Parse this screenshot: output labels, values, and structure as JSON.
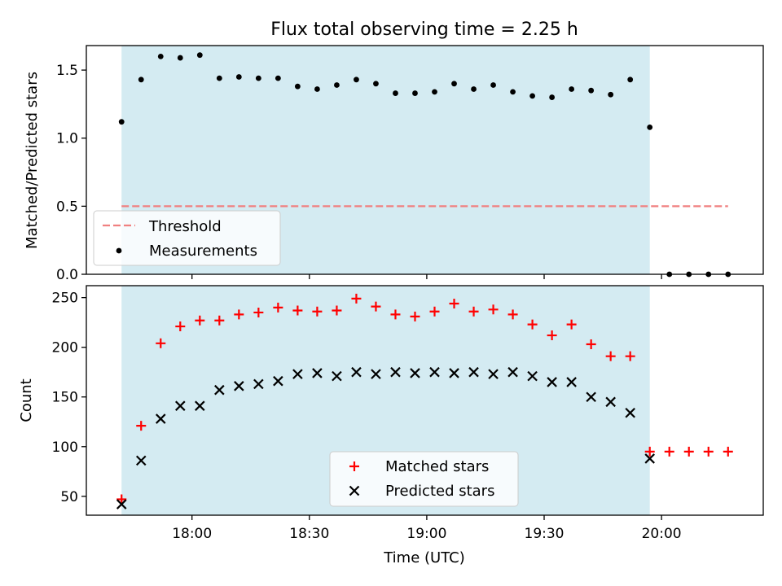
{
  "chart_data": [
    {
      "type": "scatter",
      "title": "Flux total observing time = 2.25 h",
      "xlabel": "",
      "ylabel": "Matched/Predicted stars",
      "ylim": [
        0,
        1.68
      ],
      "yticks": [
        0.0,
        0.5,
        1.0,
        1.5
      ],
      "ytick_labels": [
        "0.0",
        "0.5",
        "1.0",
        "1.5"
      ],
      "shaded_interval": [
        "17:42",
        "19:57"
      ],
      "threshold": {
        "name": "Threshold",
        "value": 0.5,
        "x_range": [
          "17:42",
          "20:17"
        ],
        "color": "#f08080"
      },
      "legend": {
        "position": "lower-left",
        "entries": [
          "Threshold",
          "Measurements"
        ]
      },
      "series": [
        {
          "name": "Measurements",
          "marker": "dot",
          "color": "#000000",
          "x": [
            "17:42",
            "17:47",
            "17:52",
            "17:57",
            "18:02",
            "18:07",
            "18:12",
            "18:17",
            "18:22",
            "18:27",
            "18:32",
            "18:37",
            "18:42",
            "18:47",
            "18:52",
            "18:57",
            "19:02",
            "19:07",
            "19:12",
            "19:17",
            "19:22",
            "19:27",
            "19:32",
            "19:37",
            "19:42",
            "19:47",
            "19:52",
            "19:57",
            "20:02",
            "20:07",
            "20:12",
            "20:17"
          ],
          "y": [
            1.12,
            1.43,
            1.6,
            1.59,
            1.61,
            1.44,
            1.45,
            1.44,
            1.44,
            1.38,
            1.36,
            1.39,
            1.43,
            1.4,
            1.33,
            1.33,
            1.34,
            1.4,
            1.36,
            1.39,
            1.34,
            1.31,
            1.3,
            1.36,
            1.35,
            1.32,
            1.43,
            1.08,
            0.0,
            0.0,
            0.0,
            0.0
          ]
        }
      ]
    },
    {
      "type": "scatter",
      "xlabel": "Time (UTC)",
      "ylabel": "Count",
      "ylim": [
        31,
        262
      ],
      "yticks": [
        50,
        100,
        150,
        200,
        250
      ],
      "xticks": [
        "18:00",
        "18:30",
        "19:00",
        "19:30",
        "20:00"
      ],
      "shaded_interval": [
        "17:42",
        "19:57"
      ],
      "legend": {
        "position": "lower-center",
        "entries": [
          "Matched stars",
          "Predicted stars"
        ]
      },
      "series": [
        {
          "name": "Matched stars",
          "marker": "plus",
          "color": "#ff0000",
          "x": [
            "17:42",
            "17:47",
            "17:52",
            "17:57",
            "18:02",
            "18:07",
            "18:12",
            "18:17",
            "18:22",
            "18:27",
            "18:32",
            "18:37",
            "18:42",
            "18:47",
            "18:52",
            "18:57",
            "19:02",
            "19:07",
            "19:12",
            "19:17",
            "19:22",
            "19:27",
            "19:32",
            "19:37",
            "19:42",
            "19:47",
            "19:52",
            "19:57",
            "20:02",
            "20:07",
            "20:12",
            "20:17"
          ],
          "y": [
            47,
            121,
            204,
            221,
            227,
            227,
            233,
            235,
            240,
            237,
            236,
            237,
            249,
            241,
            233,
            231,
            236,
            244,
            236,
            238,
            233,
            223,
            212,
            223,
            203,
            191,
            191,
            95,
            95,
            95,
            95,
            95
          ]
        },
        {
          "name": "Predicted stars",
          "marker": "x",
          "color": "#000000",
          "x": [
            "17:42",
            "17:47",
            "17:52",
            "17:57",
            "18:02",
            "18:07",
            "18:12",
            "18:17",
            "18:22",
            "18:27",
            "18:32",
            "18:37",
            "18:42",
            "18:47",
            "18:52",
            "18:57",
            "19:02",
            "19:07",
            "19:12",
            "19:17",
            "19:22",
            "19:27",
            "19:32",
            "19:37",
            "19:42",
            "19:47",
            "19:52",
            "19:57"
          ],
          "y": [
            42,
            86,
            128,
            141,
            141,
            157,
            161,
            163,
            166,
            173,
            174,
            171,
            175,
            173,
            175,
            174,
            175,
            174,
            175,
            173,
            175,
            171,
            165,
            165,
            150,
            145,
            134,
            88
          ]
        }
      ]
    }
  ]
}
